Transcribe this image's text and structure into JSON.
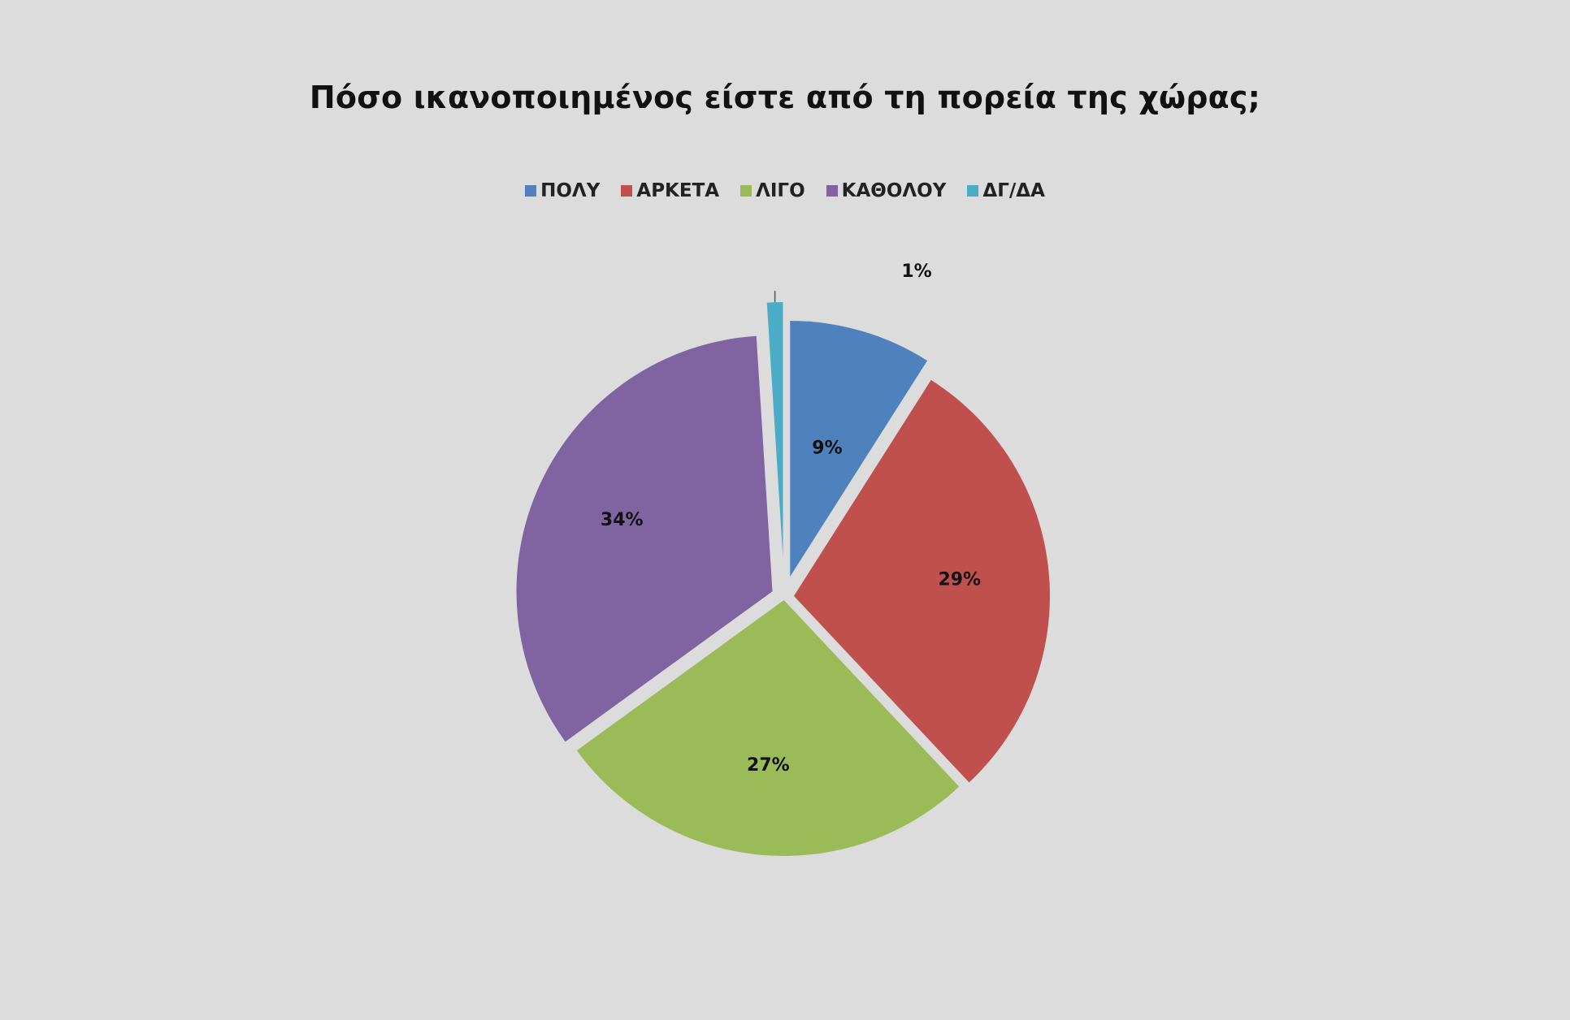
{
  "chart_data": {
    "type": "pie",
    "title": "Πόσο ικανοποιημένος είστε από τη πορεία της χώρας;",
    "categories": [
      "ΠΟΛΥ",
      "ΑΡΚΕΤΑ",
      "ΛΙΓΟ",
      "ΚΑΘΟΛΟΥ",
      "ΔΓ/ΔΑ"
    ],
    "values": [
      9,
      29,
      27,
      34,
      1
    ],
    "labels": [
      "9%",
      "29%",
      "27%",
      "34%",
      "1%"
    ],
    "colors": [
      "#4f81bd",
      "#c0504d",
      "#9bbb59",
      "#8064a2",
      "#4bacc6"
    ],
    "exploded": true,
    "legend_position": "top"
  }
}
